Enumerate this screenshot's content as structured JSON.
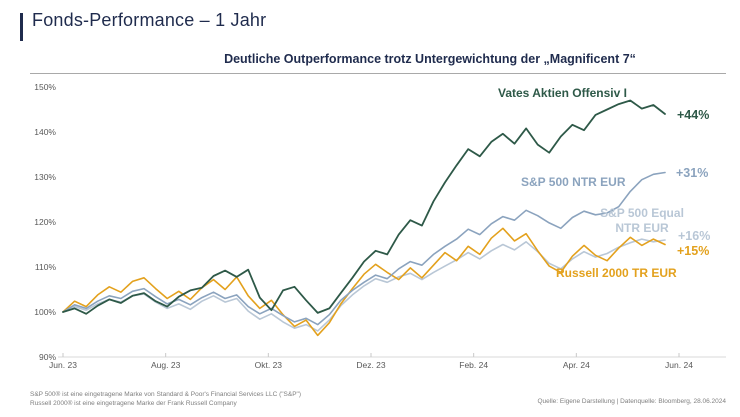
{
  "page": {
    "title": "Fonds-Performance – 1 Jahr",
    "subtitle": "Deutliche Outperformance trotz Untergewichtung der „Magnificent 7“",
    "footnote_line1": "S&P 500® ist eine eingetragene Marke von Standard & Poor's Financial Services LLC (\"S&P\")",
    "footnote_line2": "Russell 2000® ist eine eingetragene Marke der Frank Russell Company",
    "source": "Quelle: Eigene Darstellung | Datenquelle: Bloomberg, 28.06.2024"
  },
  "colors": {
    "title_navy": "#1f2b4d",
    "axis_text_gray": "#595959",
    "axis_line_gray": "#d9d9d9",
    "footnote_gray": "#7f7f7f",
    "vates_green": "#2e5948",
    "sp500_blue": "#8ba3be",
    "sp500_equal_lightblue": "#b9c7d6",
    "russell_orange": "#e3a11d"
  },
  "chart_data": {
    "type": "line",
    "title": "Deutliche Outperformance trotz Untergewichtung der „Magnificent 7“",
    "x_tick_labels": [
      "Jun. 23",
      "Aug. 23",
      "Okt. 23",
      "Dez. 23",
      "Feb. 24",
      "Apr. 24",
      "Jun. 24"
    ],
    "y_tick_labels": [
      "90%",
      "100%",
      "110%",
      "120%",
      "130%",
      "140%",
      "150%"
    ],
    "ylim": [
      90,
      150
    ],
    "grid": "off",
    "legend_position": "labels-inline-on-chart",
    "x_range_note": "weekly points, Jun 2023 to Jun 2024",
    "series": [
      {
        "name": "Vates Aktien Offensiv I",
        "end_label": "+44%",
        "color": "#2e5948",
        "values": [
          100,
          100.8,
          99.6,
          101.4,
          102.8,
          102.0,
          103.6,
          104.2,
          102.4,
          101.2,
          103.4,
          104.8,
          105.4,
          108.0,
          109.2,
          107.8,
          109.4,
          103.2,
          100.4,
          104.8,
          105.6,
          102.6,
          99.8,
          100.8,
          104.2,
          107.6,
          111.2,
          113.6,
          112.8,
          117.2,
          120.4,
          119.2,
          124.6,
          128.8,
          132.6,
          136.2,
          134.6,
          137.8,
          139.6,
          137.4,
          140.8,
          137.2,
          135.4,
          139.0,
          141.6,
          140.4,
          143.8,
          145.0,
          146.2,
          147.0,
          145.2,
          146.0,
          144.0
        ]
      },
      {
        "name": "S&P 500 NTR EUR",
        "end_label": "+31%",
        "color": "#8ba3be",
        "values": [
          100,
          101.6,
          100.8,
          102.4,
          103.6,
          103.0,
          104.6,
          105.2,
          103.4,
          101.8,
          102.8,
          101.6,
          103.2,
          104.4,
          103.0,
          103.8,
          101.2,
          99.6,
          100.8,
          99.2,
          97.8,
          98.6,
          97.2,
          99.4,
          102.6,
          104.8,
          106.6,
          108.2,
          107.4,
          109.6,
          111.2,
          110.4,
          112.8,
          114.6,
          116.2,
          118.4,
          117.2,
          119.6,
          121.2,
          120.4,
          122.6,
          121.4,
          119.8,
          118.6,
          121.0,
          122.4,
          121.6,
          122.0,
          123.4,
          126.8,
          129.4,
          130.6,
          131.0
        ]
      },
      {
        "name": "S&P 500 Equal NTR EUR",
        "end_label": "+16%",
        "color": "#b9c7d6",
        "values": [
          100,
          101.2,
          100.4,
          101.8,
          102.8,
          102.2,
          103.6,
          104.0,
          102.2,
          100.8,
          101.8,
          100.6,
          102.4,
          103.6,
          102.2,
          103.0,
          100.2,
          98.4,
          99.6,
          97.8,
          96.4,
          97.2,
          95.8,
          98.2,
          101.4,
          103.8,
          105.8,
          107.4,
          106.6,
          107.8,
          108.6,
          107.2,
          108.8,
          110.2,
          111.6,
          113.2,
          111.8,
          113.6,
          115.0,
          113.8,
          115.6,
          113.4,
          110.8,
          109.6,
          111.8,
          113.4,
          112.2,
          113.0,
          114.4,
          115.4,
          116.2,
          115.6,
          116.0
        ]
      },
      {
        "name": "Russell 2000 TR EUR",
        "end_label": "+15%",
        "color": "#e3a11d",
        "values": [
          100,
          102.4,
          101.2,
          103.8,
          105.6,
          104.4,
          106.8,
          107.6,
          105.2,
          103.0,
          104.6,
          102.8,
          105.4,
          107.2,
          105.0,
          107.8,
          103.6,
          100.8,
          102.6,
          99.4,
          96.8,
          98.2,
          94.8,
          97.6,
          101.8,
          105.2,
          108.4,
          110.6,
          108.8,
          107.2,
          109.8,
          107.6,
          110.4,
          113.2,
          111.4,
          114.6,
          112.8,
          116.4,
          118.6,
          115.8,
          117.4,
          113.6,
          110.2,
          108.8,
          112.4,
          114.8,
          112.6,
          111.4,
          114.2,
          116.6,
          114.8,
          116.2,
          115.0
        ]
      }
    ]
  }
}
